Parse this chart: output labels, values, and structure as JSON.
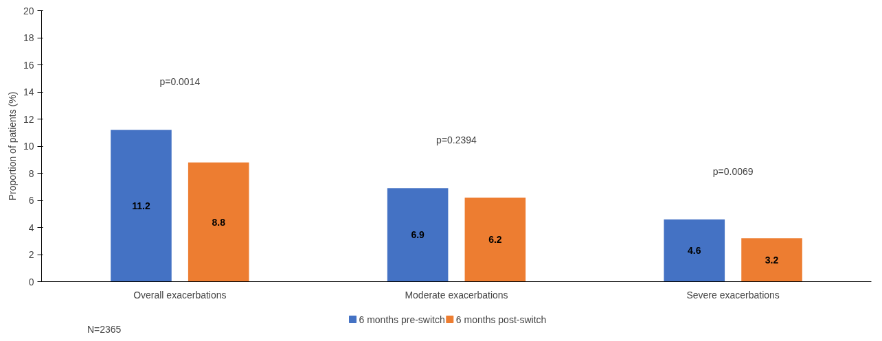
{
  "chart_data": {
    "type": "bar",
    "ylabel": "Proportion of patients (%)",
    "categories": [
      "Overall exacerbations",
      "Moderate exacerbations",
      "Severe exacerbations"
    ],
    "series": [
      {
        "name": "6 months pre-switch",
        "color": "#4472c4",
        "values": [
          11.2,
          6.9,
          4.6
        ]
      },
      {
        "name": "6 months post-switch",
        "color": "#ed7d31",
        "values": [
          8.8,
          6.2,
          3.2
        ]
      }
    ],
    "ylim": [
      0,
      20
    ],
    "yticks": [
      0,
      2,
      4,
      6,
      8,
      10,
      12,
      14,
      16,
      18,
      20
    ],
    "grid": false,
    "legend": "bottom",
    "data_labels": true,
    "annotations": [
      "p=0.0014",
      "p=0.2394",
      "p=0.0069",
      "N=2365"
    ]
  }
}
